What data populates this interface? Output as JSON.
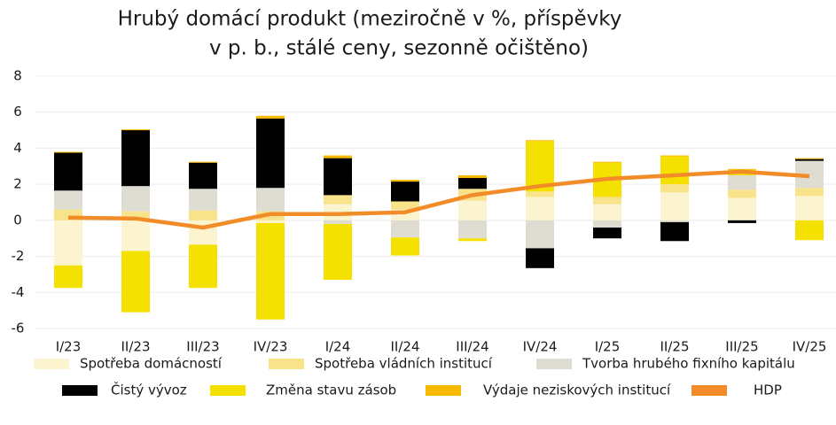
{
  "chart_data": {
    "type": "stacked-bar-line",
    "title": [
      "Hrubý domácí produkt (meziročně v %, příspěvky",
      "v p. b., stálé ceny, sezonně očištěno)"
    ],
    "categories": [
      "I/23",
      "II/23",
      "III/23",
      "IV/23",
      "I/24",
      "II/24",
      "III/24",
      "IV/24",
      "I/25",
      "II/25",
      "III/25",
      "IV/25"
    ],
    "series": [
      {
        "name": "Spotřeba domácností",
        "color": "#fcf3cf",
        "values": [
          -2.5,
          -1.7,
          -1.35,
          -0.15,
          0.9,
          0.6,
          1.1,
          1.3,
          0.9,
          1.55,
          1.25,
          1.35
        ]
      },
      {
        "name": "Spotřeba vládních institucí",
        "color": "#f8e38a",
        "values": [
          0.6,
          0.5,
          0.55,
          0.5,
          0.5,
          0.45,
          0.65,
          0.3,
          0.4,
          0.45,
          0.45,
          0.45
        ]
      },
      {
        "name": "Tvorba hrubého fixního kapitálu",
        "color": "#dfddd1",
        "values": [
          1.05,
          1.4,
          1.2,
          1.3,
          -0.2,
          -0.95,
          -1.0,
          -1.55,
          -0.4,
          -0.1,
          0.8,
          1.5
        ]
      },
      {
        "name": "Čistý vývoz",
        "color": "#000000",
        "values": [
          2.1,
          3.1,
          1.45,
          3.85,
          2.05,
          1.1,
          0.6,
          -1.1,
          -0.6,
          -1.05,
          -0.15,
          0.1
        ]
      },
      {
        "name": "Změna stavu zásob",
        "color": "#f5e100",
        "values": [
          -1.25,
          -3.4,
          -2.4,
          -5.35,
          -3.1,
          -1.0,
          -0.15,
          2.8,
          1.9,
          1.55,
          0.3,
          -1.1
        ]
      },
      {
        "name": "Výdaje neziskových institucí",
        "color": "#f7b900",
        "values": [
          0.05,
          0.05,
          0.05,
          0.15,
          0.15,
          0.1,
          0.15,
          0.05,
          0.05,
          0.05,
          0.05,
          0.05
        ]
      },
      {
        "name": "HDP",
        "color": "#f28c28",
        "type": "line",
        "values": [
          0.15,
          0.1,
          -0.4,
          0.35,
          0.35,
          0.45,
          1.4,
          1.9,
          2.3,
          2.5,
          2.7,
          2.45
        ]
      }
    ],
    "ylim": [
      -6,
      8
    ],
    "yticks": [
      -6,
      -4,
      -2,
      0,
      2,
      4,
      6,
      8
    ],
    "grid": true
  }
}
